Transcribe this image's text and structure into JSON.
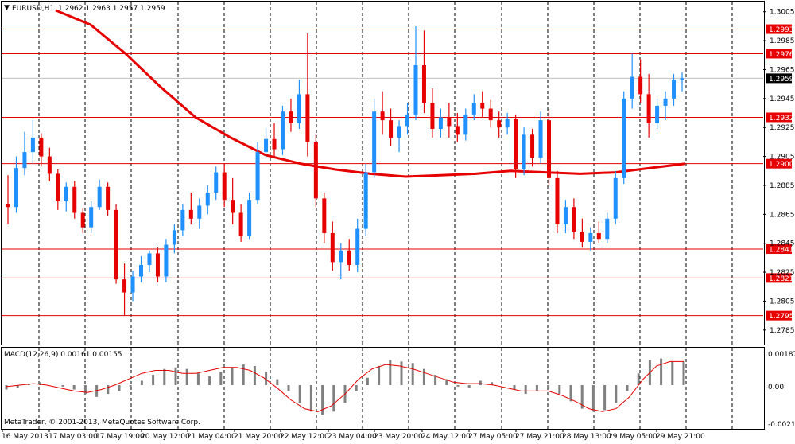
{
  "header": {
    "symbol": "EURUSD,H1",
    "ohlc": "1.2962 1.2963 1.2957 1.2959"
  },
  "indicator": {
    "label": "MACD(12,26,9) 0.00161 0.00155",
    "ticks": [
      "0.00187",
      "0.00",
      "-0.00211"
    ]
  },
  "copyright": "MetaTrader, © 2001-2013, MetaQuotes Software Corp.",
  "price_scale": [
    "1.3005",
    "1.2985",
    "1.2965",
    "1.2945",
    "1.2925",
    "1.2905",
    "1.2885",
    "1.2865",
    "1.2845",
    "1.2825",
    "1.2805",
    "1.2785"
  ],
  "levels": [
    {
      "label": "1.2993",
      "value": 1.2993
    },
    {
      "label": "1.2976",
      "value": 1.2976
    },
    {
      "label": "1.2932",
      "value": 1.2932
    },
    {
      "label": "1.2900",
      "value": 1.29
    },
    {
      "label": "1.2841",
      "value": 1.2841
    },
    {
      "label": "1.2821",
      "value": 1.2821
    },
    {
      "label": "1.2795",
      "value": 1.2795
    }
  ],
  "current_price": {
    "label": "1.2959",
    "value": 1.2959
  },
  "time_axis": [
    "16 May 2013",
    "17 May 03:00",
    "17 May 19:00",
    "20 May 12:00",
    "21 May 04:00",
    "21 May 20:00",
    "22 May 12:00",
    "23 May 04:00",
    "23 May 20:00",
    "24 May 12:00",
    "27 May 05:00",
    "27 May 21:00",
    "28 May 13:00",
    "29 May 05:00",
    "29 May 21:00"
  ],
  "colors": {
    "bull": "#1e90ff",
    "bear": "#e60000",
    "level": "#e60000",
    "ma": "#e60000",
    "hist": "#808080",
    "signal": "#e60000",
    "grid": "#000000",
    "current_bg": "#000000"
  },
  "chart_data": {
    "type": "candlestick",
    "title": "EURUSD,H1",
    "ylim": [
      1.2775,
      1.3012
    ],
    "ohlc": [
      [
        1.2872,
        1.2892,
        1.2858,
        1.287
      ],
      [
        1.287,
        1.2905,
        1.2866,
        1.2897
      ],
      [
        1.2897,
        1.2922,
        1.2892,
        1.2908
      ],
      [
        1.2908,
        1.293,
        1.29,
        1.2918
      ],
      [
        1.2918,
        1.2921,
        1.2898,
        1.2905
      ],
      [
        1.2905,
        1.2911,
        1.2888,
        1.2893
      ],
      [
        1.2893,
        1.2896,
        1.2868,
        1.2874
      ],
      [
        1.2874,
        1.2887,
        1.2867,
        1.2884
      ],
      [
        1.2884,
        1.2888,
        1.2862,
        1.2866
      ],
      [
        1.2866,
        1.2869,
        1.2852,
        1.2856
      ],
      [
        1.2856,
        1.2874,
        1.2852,
        1.287
      ],
      [
        1.287,
        1.2889,
        1.2868,
        1.2884
      ],
      [
        1.2884,
        1.2887,
        1.2864,
        1.2868
      ],
      [
        1.2868,
        1.2872,
        1.2817,
        1.282
      ],
      [
        1.282,
        1.2831,
        1.2795,
        1.2811
      ],
      [
        1.2811,
        1.2826,
        1.2805,
        1.2822
      ],
      [
        1.2822,
        1.2836,
        1.2818,
        1.283
      ],
      [
        1.283,
        1.284,
        1.2825,
        1.2838
      ],
      [
        1.2838,
        1.2842,
        1.2818,
        1.2822
      ],
      [
        1.2822,
        1.2848,
        1.2818,
        1.2844
      ],
      [
        1.2844,
        1.2858,
        1.2838,
        1.2854
      ],
      [
        1.2854,
        1.2872,
        1.285,
        1.2868
      ],
      [
        1.2868,
        1.288,
        1.2858,
        1.2862
      ],
      [
        1.2862,
        1.2876,
        1.2855,
        1.2871
      ],
      [
        1.2871,
        1.2885,
        1.2865,
        1.288
      ],
      [
        1.288,
        1.2898,
        1.2875,
        1.2894
      ],
      [
        1.2894,
        1.29,
        1.287,
        1.2875
      ],
      [
        1.2875,
        1.289,
        1.2858,
        1.2866
      ],
      [
        1.2866,
        1.2872,
        1.2846,
        1.285
      ],
      [
        1.285,
        1.288,
        1.2848,
        1.2875
      ],
      [
        1.2875,
        1.2915,
        1.2872,
        1.2908
      ],
      [
        1.2908,
        1.2925,
        1.2904,
        1.2917
      ],
      [
        1.2917,
        1.2928,
        1.2905,
        1.291
      ],
      [
        1.291,
        1.294,
        1.2906,
        1.2936
      ],
      [
        1.2936,
        1.2945,
        1.2922,
        1.2928
      ],
      [
        1.2928,
        1.2958,
        1.2924,
        1.2948
      ],
      [
        1.2948,
        1.299,
        1.2905,
        1.2915
      ],
      [
        1.2915,
        1.292,
        1.287,
        1.2876
      ],
      [
        1.2876,
        1.288,
        1.2845,
        1.2852
      ],
      [
        1.2852,
        1.286,
        1.2826,
        1.2832
      ],
      [
        1.2832,
        1.2845,
        1.282,
        1.284
      ],
      [
        1.284,
        1.2848,
        1.2826,
        1.283
      ],
      [
        1.283,
        1.2862,
        1.2825,
        1.2855
      ],
      [
        1.2855,
        1.29,
        1.285,
        1.2894
      ],
      [
        1.2894,
        1.2945,
        1.289,
        1.2936
      ],
      [
        1.2936,
        1.295,
        1.292,
        1.293
      ],
      [
        1.293,
        1.2938,
        1.2912,
        1.2918
      ],
      [
        1.2918,
        1.293,
        1.2908,
        1.2926
      ],
      [
        1.2926,
        1.2942,
        1.292,
        1.2934
      ],
      [
        1.2934,
        1.2995,
        1.293,
        1.2968
      ],
      [
        1.2968,
        1.2992,
        1.2935,
        1.2942
      ],
      [
        1.2942,
        1.2952,
        1.2918,
        1.2924
      ],
      [
        1.2924,
        1.2938,
        1.2918,
        1.2932
      ],
      [
        1.2932,
        1.2942,
        1.2918,
        1.2926
      ],
      [
        1.2926,
        1.2935,
        1.2915,
        1.292
      ],
      [
        1.292,
        1.2938,
        1.2916,
        1.2934
      ],
      [
        1.2934,
        1.2948,
        1.293,
        1.2942
      ],
      [
        1.2942,
        1.295,
        1.2932,
        1.2938
      ],
      [
        1.2938,
        1.2944,
        1.2925,
        1.293
      ],
      [
        1.293,
        1.2936,
        1.2918,
        1.2925
      ],
      [
        1.2925,
        1.2935,
        1.292,
        1.2931
      ],
      [
        1.2931,
        1.2934,
        1.289,
        1.2896
      ],
      [
        1.2896,
        1.2925,
        1.2892,
        1.292
      ],
      [
        1.292,
        1.2924,
        1.2898,
        1.2904
      ],
      [
        1.2904,
        1.2936,
        1.29,
        1.293
      ],
      [
        1.293,
        1.2938,
        1.2885,
        1.289
      ],
      [
        1.289,
        1.2895,
        1.2852,
        1.2858
      ],
      [
        1.2858,
        1.2875,
        1.2852,
        1.287
      ],
      [
        1.287,
        1.2876,
        1.2848,
        1.2853
      ],
      [
        1.2853,
        1.2862,
        1.2842,
        1.2846
      ],
      [
        1.2846,
        1.2856,
        1.284,
        1.2852
      ],
      [
        1.2852,
        1.286,
        1.2845,
        1.2848
      ],
      [
        1.2848,
        1.2866,
        1.2845,
        1.2862
      ],
      [
        1.2862,
        1.2895,
        1.2858,
        1.289
      ],
      [
        1.289,
        1.295,
        1.2886,
        1.2945
      ],
      [
        1.2945,
        1.2976,
        1.2938,
        1.296
      ],
      [
        1.296,
        1.2972,
        1.2942,
        1.2948
      ],
      [
        1.2948,
        1.2962,
        1.2918,
        1.2928
      ],
      [
        1.2928,
        1.2945,
        1.2924,
        1.294
      ],
      [
        1.294,
        1.295,
        1.293,
        1.2945
      ],
      [
        1.2945,
        1.2962,
        1.294,
        1.2958
      ],
      [
        1.2958,
        1.2963,
        1.295,
        1.2959
      ]
    ],
    "moving_average": [
      1.3006,
      1.2996,
      1.2976,
      1.2953,
      1.2932,
      1.2918,
      1.2906,
      1.29,
      1.2896,
      1.2893,
      1.2891,
      1.2892,
      1.2893,
      1.2895,
      1.2894,
      1.2893,
      1.2894,
      1.2897,
      1.29
    ],
    "macd_histogram": [
      -0.0003,
      -0.0002,
      0.0001,
      0.0002,
      0.0,
      -0.0001,
      -0.0003,
      -0.0006,
      -0.0008,
      -0.0006,
      -0.0004,
      -0.0001,
      0.0003,
      0.0007,
      0.0011,
      0.0012,
      0.0011,
      0.0008,
      0.0006,
      0.0009,
      0.0012,
      0.0014,
      0.0013,
      0.0009,
      0.0004,
      -0.0004,
      -0.0012,
      -0.0018,
      -0.002,
      -0.0018,
      -0.0012,
      -0.0004,
      0.0005,
      0.0013,
      0.0017,
      0.0016,
      0.0015,
      0.0011,
      0.0007,
      0.0004,
      -0.0001,
      -0.0002,
      0.0003,
      0.0002,
      0.0,
      -0.0003,
      -0.0006,
      -0.0004,
      -0.0002,
      -0.0006,
      -0.0011,
      -0.0016,
      -0.0018,
      -0.0017,
      -0.0012,
      -0.0004,
      0.0008,
      0.0017,
      0.0018,
      0.0016,
      0.0016
    ],
    "macd_signal": [
      -0.0001,
      0.0,
      0.0001,
      0.0,
      -0.0002,
      -0.0004,
      -0.0005,
      -0.0003,
      0.0,
      0.0004,
      0.0008,
      0.001,
      0.001,
      0.0008,
      0.0008,
      0.001,
      0.0012,
      0.0012,
      0.001,
      0.0005,
      -0.0002,
      -0.001,
      -0.0016,
      -0.0018,
      -0.0014,
      -0.0006,
      0.0004,
      0.0011,
      0.0014,
      0.0013,
      0.0011,
      0.0008,
      0.0005,
      0.0002,
      0.0001,
      0.0001,
      0.0,
      -0.0002,
      -0.0004,
      -0.0004,
      -0.0004,
      -0.0007,
      -0.0011,
      -0.0016,
      -0.0018,
      -0.0016,
      -0.0008,
      0.0004,
      0.0013,
      0.0016,
      0.0016
    ]
  }
}
